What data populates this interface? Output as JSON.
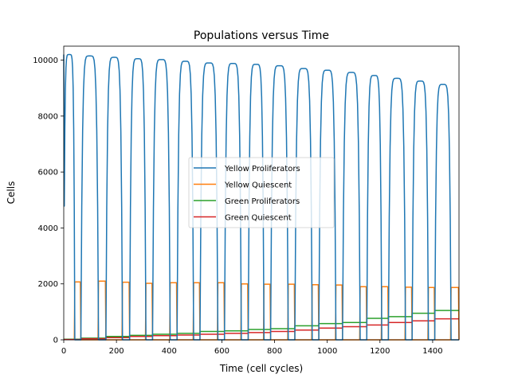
{
  "chart_data": {
    "type": "line",
    "title": "Populations versus Time",
    "xlabel": "Time (cell cycles)",
    "ylabel": "Cells",
    "xlim": [
      0,
      1500
    ],
    "ylim": [
      0,
      10500
    ],
    "xticks": [
      0,
      200,
      400,
      600,
      800,
      1000,
      1200,
      1400
    ],
    "yticks": [
      0,
      2000,
      4000,
      6000,
      8000,
      10000
    ],
    "grid": false,
    "legend_position": "center",
    "colors": {
      "yellow_proliferators": "#1f77b4",
      "yellow_quiescent": "#ff7f0e",
      "green_proliferators": "#2ca02c",
      "green_quiescent": "#d62728"
    },
    "cycles": [
      {
        "start": 0,
        "rise_end": 42,
        "low_end": 65,
        "peak_y": 10200,
        "yq_high": 2070,
        "gp_level": 20,
        "gq_level": 10
      },
      {
        "start": 65,
        "rise_end": 132,
        "low_end": 160,
        "peak_y": 10150,
        "yq_high": 2100,
        "gp_level": 60,
        "gq_level": 40
      },
      {
        "start": 160,
        "rise_end": 223,
        "low_end": 250,
        "peak_y": 10100,
        "yq_high": 2060,
        "gp_level": 120,
        "gq_level": 80
      },
      {
        "start": 250,
        "rise_end": 312,
        "low_end": 337,
        "peak_y": 10050,
        "yq_high": 2020,
        "gp_level": 160,
        "gq_level": 120
      },
      {
        "start": 337,
        "rise_end": 404,
        "low_end": 430,
        "peak_y": 10020,
        "yq_high": 2040,
        "gp_level": 200,
        "gq_level": 150
      },
      {
        "start": 430,
        "rise_end": 493,
        "low_end": 517,
        "peak_y": 9960,
        "yq_high": 2040,
        "gp_level": 230,
        "gq_level": 170
      },
      {
        "start": 517,
        "rise_end": 585,
        "low_end": 610,
        "peak_y": 9900,
        "yq_high": 2040,
        "gp_level": 300,
        "gq_level": 200
      },
      {
        "start": 610,
        "rise_end": 674,
        "low_end": 700,
        "peak_y": 9880,
        "yq_high": 2000,
        "gp_level": 320,
        "gq_level": 230
      },
      {
        "start": 700,
        "rise_end": 760,
        "low_end": 785,
        "peak_y": 9850,
        "yq_high": 1990,
        "gp_level": 370,
        "gq_level": 260
      },
      {
        "start": 785,
        "rise_end": 852,
        "low_end": 877,
        "peak_y": 9800,
        "yq_high": 1990,
        "gp_level": 400,
        "gq_level": 300
      },
      {
        "start": 877,
        "rise_end": 943,
        "low_end": 968,
        "peak_y": 9700,
        "yq_high": 1970,
        "gp_level": 500,
        "gq_level": 350
      },
      {
        "start": 968,
        "rise_end": 1033,
        "low_end": 1058,
        "peak_y": 9640,
        "yq_high": 1960,
        "gp_level": 580,
        "gq_level": 420
      },
      {
        "start": 1058,
        "rise_end": 1125,
        "low_end": 1150,
        "peak_y": 9560,
        "yq_high": 1900,
        "gp_level": 620,
        "gq_level": 470
      },
      {
        "start": 1150,
        "rise_end": 1207,
        "low_end": 1232,
        "peak_y": 9450,
        "yq_high": 1900,
        "gp_level": 770,
        "gq_level": 530
      },
      {
        "start": 1232,
        "rise_end": 1297,
        "low_end": 1322,
        "peak_y": 9350,
        "yq_high": 1880,
        "gp_level": 830,
        "gq_level": 620
      },
      {
        "start": 1322,
        "rise_end": 1384,
        "low_end": 1408,
        "peak_y": 9250,
        "yq_high": 1870,
        "gp_level": 950,
        "gq_level": 680
      },
      {
        "start": 1408,
        "rise_end": 1470,
        "low_end": 1500,
        "peak_y": 9130,
        "yq_high": 1870,
        "gp_level": 1050,
        "gq_level": 750
      }
    ],
    "series": [
      {
        "name": "Yellow Proliferators",
        "key": "yellow_proliferators"
      },
      {
        "name": "Yellow Quiescent",
        "key": "yellow_quiescent"
      },
      {
        "name": "Green Proliferators",
        "key": "green_proliferators"
      },
      {
        "name": "Green Quiescent",
        "key": "green_quiescent"
      }
    ]
  }
}
